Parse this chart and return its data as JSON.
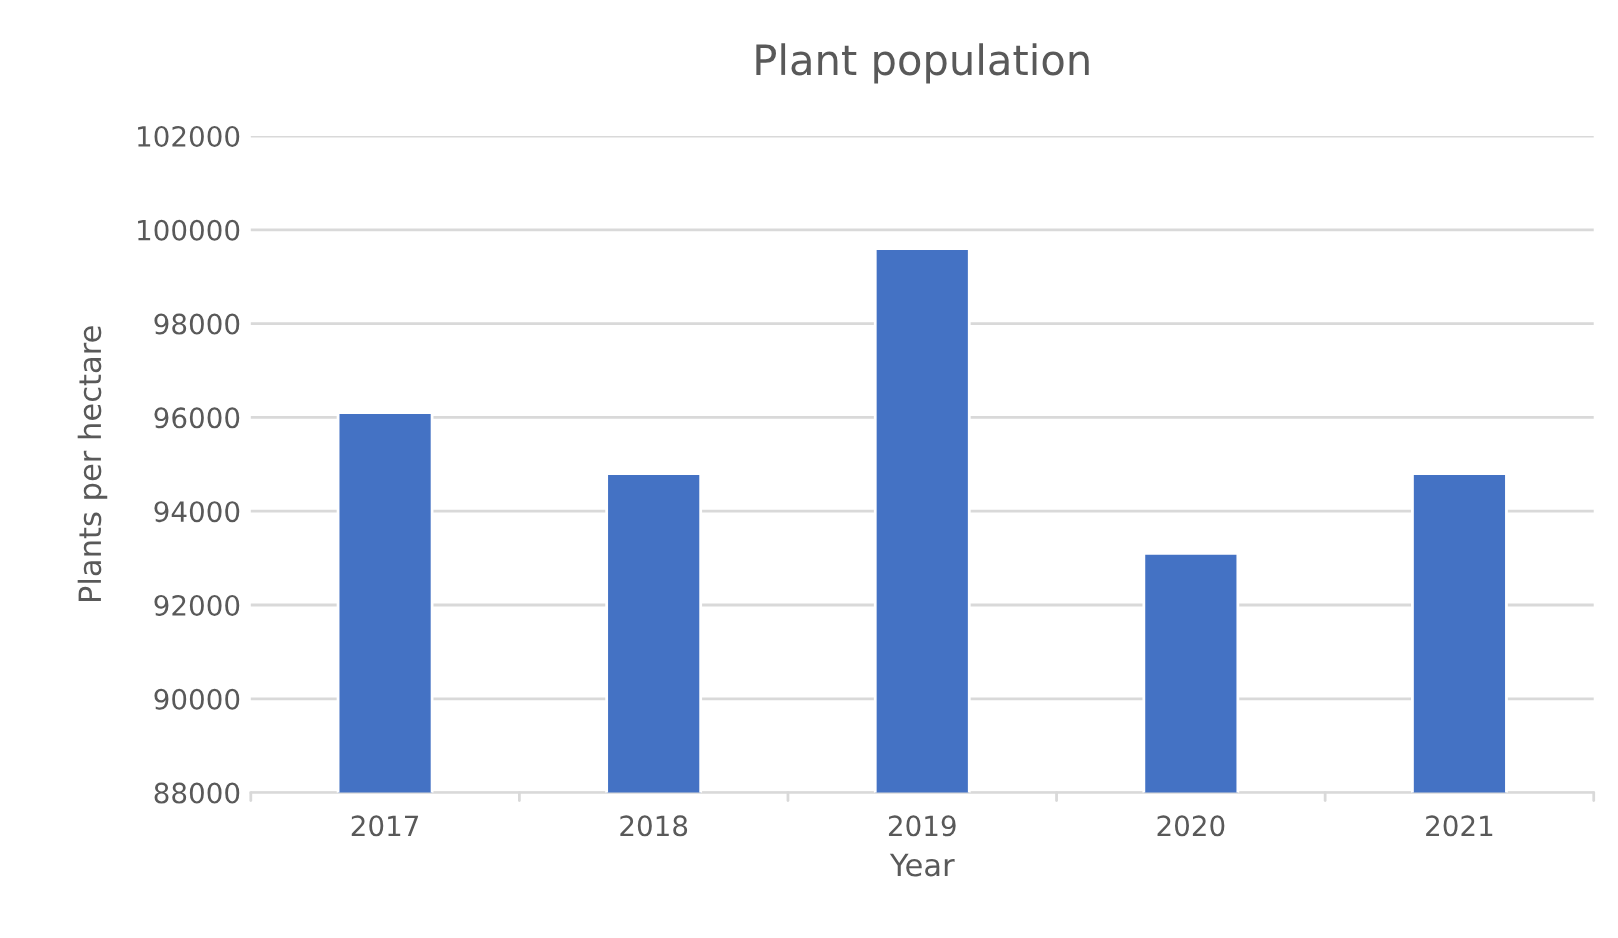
{
  "chart_data": {
    "type": "bar",
    "title": "Plant population",
    "xlabel": "Year",
    "ylabel": "Plants per hectare",
    "categories": [
      "2017",
      "2018",
      "2019",
      "2020",
      "2021"
    ],
    "values": [
      96100,
      94800,
      99600,
      93100,
      94800
    ],
    "color": "#4472c4",
    "ylim": [
      88000,
      102000
    ],
    "yticks": [
      88000,
      90000,
      92000,
      94000,
      96000,
      98000,
      100000,
      102000
    ],
    "grid": "y",
    "legend": false
  }
}
